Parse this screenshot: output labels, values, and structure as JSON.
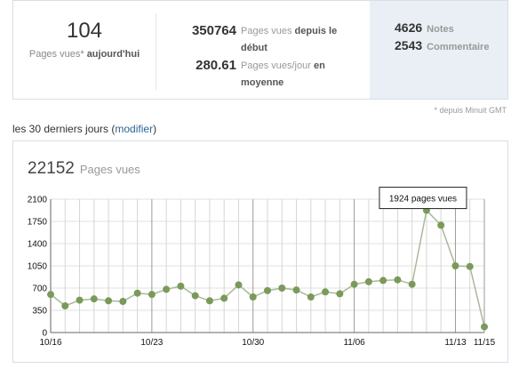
{
  "today": {
    "value": "104",
    "label": "Pages vues*",
    "label_strong": "aujourd'hui"
  },
  "totals": {
    "views_since_start": {
      "value": "350764",
      "label": "Pages vues",
      "label_strong": "depuis le début"
    },
    "views_per_day": {
      "value": "280.61",
      "label": "Pages vues/jour",
      "label_strong": "en moyenne"
    },
    "notes": {
      "value": "4626",
      "label": "Notes"
    },
    "comments": {
      "value": "2543",
      "label": "Commentaire"
    }
  },
  "footnote": "* depuis Minuit GMT",
  "period": {
    "prefix": "les 30 derniers jours (",
    "link": "modifier",
    "suffix": ")"
  },
  "total_views": {
    "value": "22152",
    "label": "Pages vues"
  },
  "tooltip": "1924 pages vues",
  "colors": {
    "line": "#aab89a",
    "point": "#7a9a5a",
    "accent_link": "#2a6496",
    "panel": "#e9eff4"
  },
  "chart_data": {
    "type": "line",
    "x_tick_labels": [
      "10/16",
      "10/23",
      "10/30",
      "11/06",
      "11/13",
      "11/15"
    ],
    "x_tick_index": [
      0,
      7,
      14,
      21,
      28,
      30
    ],
    "y_tick_labels": [
      "0",
      "350",
      "700",
      "1050",
      "1400",
      "1750",
      "2100"
    ],
    "ylim": [
      0,
      2100
    ],
    "series": [
      {
        "values": [
          600,
          420,
          510,
          530,
          500,
          490,
          620,
          600,
          680,
          730,
          580,
          500,
          540,
          750,
          560,
          660,
          700,
          670,
          560,
          640,
          610,
          760,
          800,
          820,
          830,
          760,
          1924,
          1690,
          1050,
          1040,
          90
        ]
      }
    ],
    "grid": true
  }
}
